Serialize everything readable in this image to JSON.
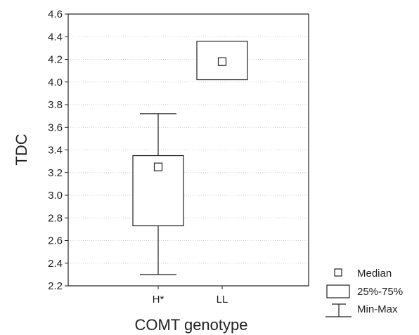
{
  "chart_data": {
    "type": "box",
    "title": "",
    "xlabel": "COMT genotype",
    "ylabel": "TDC",
    "ylim": [
      2.2,
      4.6
    ],
    "ytick_step": 0.2,
    "grid": "horizontal dotted",
    "categories": [
      "H*",
      "LL"
    ],
    "boxes": [
      {
        "category": "H*",
        "min": 2.3,
        "q1": 2.73,
        "median": 3.25,
        "q3": 3.35,
        "max": 3.72
      },
      {
        "category": "LL",
        "min": 4.02,
        "q1": 4.02,
        "median": 4.18,
        "q3": 4.36,
        "max": 4.36
      }
    ],
    "legend": {
      "placement": "bottom-right",
      "items": [
        {
          "symbol": "median-square",
          "label": "Median"
        },
        {
          "symbol": "box",
          "label": "25%-75%"
        },
        {
          "symbol": "whisker",
          "label": "Min-Max"
        }
      ]
    }
  }
}
